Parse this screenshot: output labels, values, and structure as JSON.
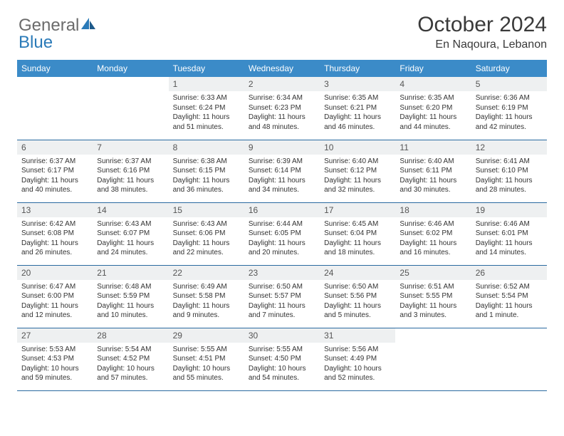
{
  "logo": {
    "general": "General",
    "blue": "Blue"
  },
  "title": "October 2024",
  "location": "En Naqoura, Lebanon",
  "colors": {
    "header_bg": "#3b8bc8",
    "header_text": "#ffffff",
    "daynum_bg": "#eef0f1",
    "row_border": "#2a6aa0",
    "logo_gray": "#6b6b6b",
    "logo_blue": "#2a7ab8"
  },
  "dayHeaders": [
    "Sunday",
    "Monday",
    "Tuesday",
    "Wednesday",
    "Thursday",
    "Friday",
    "Saturday"
  ],
  "weeks": [
    [
      {
        "n": "",
        "sr": "",
        "ss": "",
        "dl": ""
      },
      {
        "n": "",
        "sr": "",
        "ss": "",
        "dl": ""
      },
      {
        "n": "1",
        "sr": "6:33 AM",
        "ss": "6:24 PM",
        "dl": "11 hours and 51 minutes."
      },
      {
        "n": "2",
        "sr": "6:34 AM",
        "ss": "6:23 PM",
        "dl": "11 hours and 48 minutes."
      },
      {
        "n": "3",
        "sr": "6:35 AM",
        "ss": "6:21 PM",
        "dl": "11 hours and 46 minutes."
      },
      {
        "n": "4",
        "sr": "6:35 AM",
        "ss": "6:20 PM",
        "dl": "11 hours and 44 minutes."
      },
      {
        "n": "5",
        "sr": "6:36 AM",
        "ss": "6:19 PM",
        "dl": "11 hours and 42 minutes."
      }
    ],
    [
      {
        "n": "6",
        "sr": "6:37 AM",
        "ss": "6:17 PM",
        "dl": "11 hours and 40 minutes."
      },
      {
        "n": "7",
        "sr": "6:37 AM",
        "ss": "6:16 PM",
        "dl": "11 hours and 38 minutes."
      },
      {
        "n": "8",
        "sr": "6:38 AM",
        "ss": "6:15 PM",
        "dl": "11 hours and 36 minutes."
      },
      {
        "n": "9",
        "sr": "6:39 AM",
        "ss": "6:14 PM",
        "dl": "11 hours and 34 minutes."
      },
      {
        "n": "10",
        "sr": "6:40 AM",
        "ss": "6:12 PM",
        "dl": "11 hours and 32 minutes."
      },
      {
        "n": "11",
        "sr": "6:40 AM",
        "ss": "6:11 PM",
        "dl": "11 hours and 30 minutes."
      },
      {
        "n": "12",
        "sr": "6:41 AM",
        "ss": "6:10 PM",
        "dl": "11 hours and 28 minutes."
      }
    ],
    [
      {
        "n": "13",
        "sr": "6:42 AM",
        "ss": "6:08 PM",
        "dl": "11 hours and 26 minutes."
      },
      {
        "n": "14",
        "sr": "6:43 AM",
        "ss": "6:07 PM",
        "dl": "11 hours and 24 minutes."
      },
      {
        "n": "15",
        "sr": "6:43 AM",
        "ss": "6:06 PM",
        "dl": "11 hours and 22 minutes."
      },
      {
        "n": "16",
        "sr": "6:44 AM",
        "ss": "6:05 PM",
        "dl": "11 hours and 20 minutes."
      },
      {
        "n": "17",
        "sr": "6:45 AM",
        "ss": "6:04 PM",
        "dl": "11 hours and 18 minutes."
      },
      {
        "n": "18",
        "sr": "6:46 AM",
        "ss": "6:02 PM",
        "dl": "11 hours and 16 minutes."
      },
      {
        "n": "19",
        "sr": "6:46 AM",
        "ss": "6:01 PM",
        "dl": "11 hours and 14 minutes."
      }
    ],
    [
      {
        "n": "20",
        "sr": "6:47 AM",
        "ss": "6:00 PM",
        "dl": "11 hours and 12 minutes."
      },
      {
        "n": "21",
        "sr": "6:48 AM",
        "ss": "5:59 PM",
        "dl": "11 hours and 10 minutes."
      },
      {
        "n": "22",
        "sr": "6:49 AM",
        "ss": "5:58 PM",
        "dl": "11 hours and 9 minutes."
      },
      {
        "n": "23",
        "sr": "6:50 AM",
        "ss": "5:57 PM",
        "dl": "11 hours and 7 minutes."
      },
      {
        "n": "24",
        "sr": "6:50 AM",
        "ss": "5:56 PM",
        "dl": "11 hours and 5 minutes."
      },
      {
        "n": "25",
        "sr": "6:51 AM",
        "ss": "5:55 PM",
        "dl": "11 hours and 3 minutes."
      },
      {
        "n": "26",
        "sr": "6:52 AM",
        "ss": "5:54 PM",
        "dl": "11 hours and 1 minute."
      }
    ],
    [
      {
        "n": "27",
        "sr": "5:53 AM",
        "ss": "4:53 PM",
        "dl": "10 hours and 59 minutes."
      },
      {
        "n": "28",
        "sr": "5:54 AM",
        "ss": "4:52 PM",
        "dl": "10 hours and 57 minutes."
      },
      {
        "n": "29",
        "sr": "5:55 AM",
        "ss": "4:51 PM",
        "dl": "10 hours and 55 minutes."
      },
      {
        "n": "30",
        "sr": "5:55 AM",
        "ss": "4:50 PM",
        "dl": "10 hours and 54 minutes."
      },
      {
        "n": "31",
        "sr": "5:56 AM",
        "ss": "4:49 PM",
        "dl": "10 hours and 52 minutes."
      },
      {
        "n": "",
        "sr": "",
        "ss": "",
        "dl": ""
      },
      {
        "n": "",
        "sr": "",
        "ss": "",
        "dl": ""
      }
    ]
  ]
}
